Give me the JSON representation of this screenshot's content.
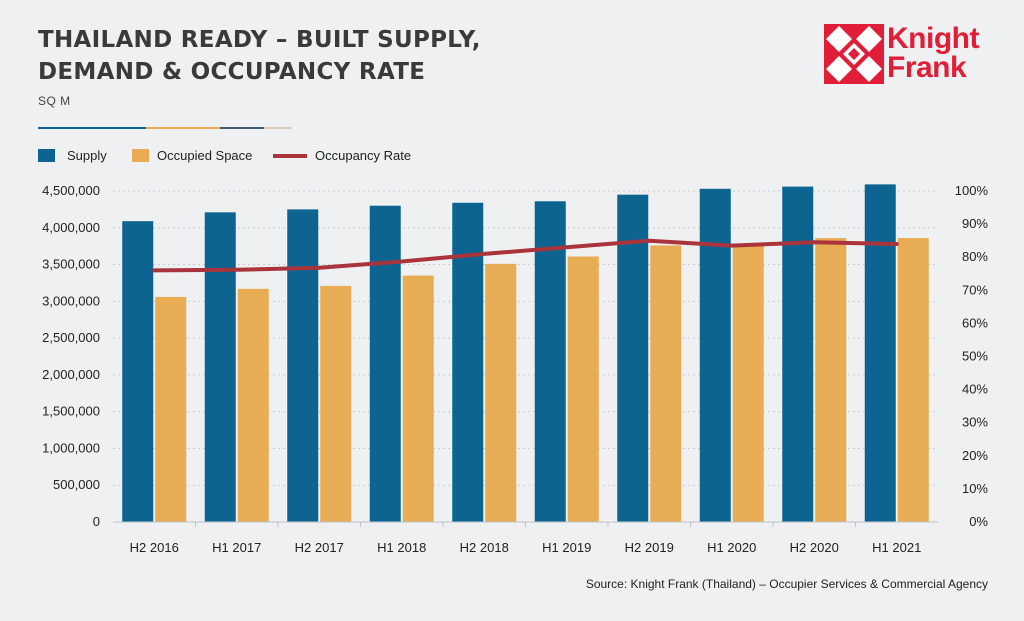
{
  "header": {
    "title_line1": "THAILAND READY – BUILT SUPPLY,",
    "title_line2": "DEMAND & OCCUPANCY RATE",
    "unit": "SQ M"
  },
  "logo": {
    "line1": "Knight",
    "line2": "Frank",
    "color": "#e01e37"
  },
  "legend": {
    "supply": "Supply",
    "occupied": "Occupied Space",
    "rate": "Occupancy Rate"
  },
  "colors": {
    "supply": "#0d6491",
    "occupied": "#e8ac55",
    "rate": "#a9343c"
  },
  "chart_data": {
    "type": "bar",
    "categories": [
      "H2 2016",
      "H1 2017",
      "H2 2017",
      "H1 2018",
      "H2 2018",
      "H1 2019",
      "H2 2019",
      "H1 2020",
      "H2 2020",
      "H1 2021"
    ],
    "series": [
      {
        "name": "Supply",
        "type": "bar",
        "axis": "left",
        "values": [
          4090000,
          4210000,
          4250000,
          4300000,
          4340000,
          4360000,
          4450000,
          4530000,
          4560000,
          4590000
        ]
      },
      {
        "name": "Occupied Space",
        "type": "bar",
        "axis": "left",
        "values": [
          3060000,
          3170000,
          3210000,
          3350000,
          3510000,
          3610000,
          3760000,
          3780000,
          3860000,
          3860000
        ]
      },
      {
        "name": "Occupancy Rate",
        "type": "line",
        "axis": "right",
        "values": [
          0.76,
          0.762,
          0.768,
          0.787,
          0.81,
          0.83,
          0.85,
          0.835,
          0.845,
          0.84
        ]
      }
    ],
    "ylim": [
      0,
      4500000
    ],
    "y_ticks": [
      "0",
      "500,000",
      "1,000,000",
      "1,500,000",
      "2,000,000",
      "2,500,000",
      "3,000,000",
      "3,500,000",
      "4,000,000",
      "4,500,000"
    ],
    "y2lim": [
      0,
      1.0
    ],
    "y2_ticks": [
      "0%",
      "10%",
      "20%",
      "30%",
      "40%",
      "50%",
      "60%",
      "70%",
      "80%",
      "90%",
      "100%"
    ],
    "grid": true,
    "legend_position": "top-left"
  },
  "source": "Source: Knight Frank (Thailand) – Occupier Services & Commercial Agency"
}
